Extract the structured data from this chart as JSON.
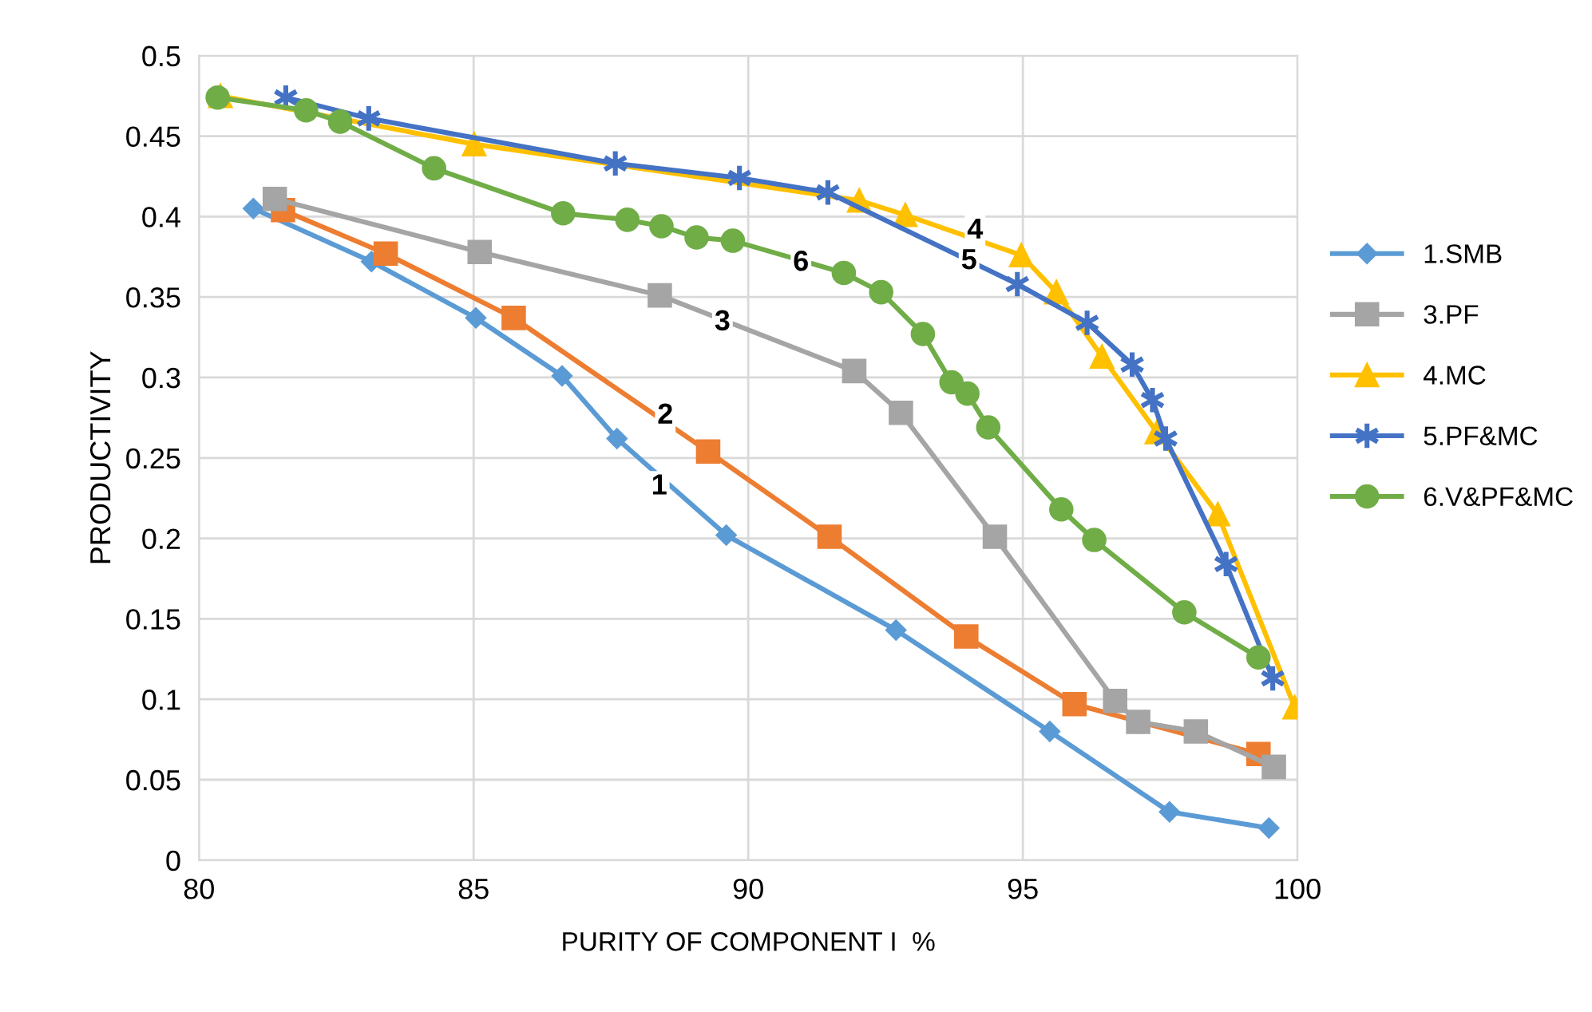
{
  "chart_data": {
    "type": "line",
    "xlabel": "PURITY OF COMPONENT I  %",
    "ylabel": "PRODUCTIVITY",
    "xlim": [
      80,
      100
    ],
    "xticks": [
      80,
      85,
      90,
      95,
      100
    ],
    "ylim": [
      0,
      0.5
    ],
    "yticks": [
      {
        "value": 0,
        "label": "0"
      },
      {
        "value": 0.05,
        "label": "0.05"
      },
      {
        "value": 0.1,
        "label": "0.1"
      },
      {
        "value": 0.15,
        "label": "0.15"
      },
      {
        "value": 0.2,
        "label": "0.2"
      },
      {
        "value": 0.25,
        "label": "0.25"
      },
      {
        "value": 0.3,
        "label": "0.3"
      },
      {
        "value": 0.35,
        "label": "0.35"
      },
      {
        "value": 0.4,
        "label": "0.4"
      },
      {
        "value": 0.45,
        "label": "0.45"
      },
      {
        "value": 0.5,
        "label": "0.5"
      }
    ],
    "grid": true,
    "legend": "right",
    "line_style": "solid",
    "series": [
      {
        "name": "1.SMB",
        "color": "#5b9bd5",
        "marker": "diamond",
        "x": [
          80.99,
          83.14,
          85.04,
          86.61,
          87.61,
          89.6,
          92.69,
          95.49,
          97.67,
          99.48
        ],
        "values": [
          0.405,
          0.372,
          0.337,
          0.301,
          0.262,
          0.202,
          0.143,
          0.08,
          0.03,
          0.02
        ]
      },
      {
        "color": "#ed7d31",
        "marker": "square",
        "x": [
          81.53,
          83.4,
          85.73,
          89.27,
          91.48,
          93.97,
          95.94,
          99.29
        ],
        "values": [
          0.404,
          0.377,
          0.337,
          0.254,
          0.201,
          0.139,
          0.097,
          0.066
        ]
      },
      {
        "name": "3.PF",
        "color": "#a5a5a5",
        "marker": "square",
        "x": [
          81.38,
          85.11,
          88.39,
          91.93,
          92.78,
          94.49,
          96.68,
          97.1,
          98.15,
          99.57
        ],
        "values": [
          0.411,
          0.378,
          0.351,
          0.304,
          0.278,
          0.201,
          0.099,
          0.086,
          0.08,
          0.058
        ]
      },
      {
        "name": "4.MC",
        "color": "#ffc000",
        "marker": "triangle",
        "x": [
          80.39,
          85.01,
          92.02,
          92.86,
          94.97,
          95.61,
          96.44,
          97.44,
          98.55,
          99.95
        ],
        "values": [
          0.475,
          0.445,
          0.41,
          0.401,
          0.376,
          0.353,
          0.313,
          0.266,
          0.215,
          0.095
        ]
      },
      {
        "name": "5.PF&MC",
        "color": "#4472c4",
        "marker": "cross",
        "x": [
          81.58,
          83.09,
          87.58,
          89.84,
          91.45,
          94.9,
          96.17,
          96.99,
          97.36,
          97.6,
          98.7,
          99.55
        ],
        "values": [
          0.474,
          0.461,
          0.433,
          0.424,
          0.415,
          0.358,
          0.334,
          0.308,
          0.286,
          0.262,
          0.184,
          0.113
        ]
      },
      {
        "name": "6.V&PF&MC",
        "color": "#70ad47",
        "marker": "circle",
        "x": [
          80.34,
          81.95,
          82.57,
          84.28,
          86.63,
          87.8,
          88.42,
          89.06,
          89.72,
          91.74,
          92.42,
          93.18,
          93.7,
          93.99,
          94.37,
          95.7,
          96.3,
          97.94,
          99.29
        ],
        "values": [
          0.474,
          0.466,
          0.459,
          0.43,
          0.402,
          0.398,
          0.394,
          0.387,
          0.385,
          0.365,
          0.353,
          0.327,
          0.297,
          0.29,
          0.269,
          0.218,
          0.199,
          0.154,
          0.126
        ]
      }
    ],
    "annotations": [
      {
        "text": "1",
        "x": 88.38,
        "y": 0.232
      },
      {
        "text": "2",
        "x": 88.49,
        "y": 0.276
      },
      {
        "text": "3",
        "x": 89.53,
        "y": 0.334
      },
      {
        "text": "4",
        "x": 94.13,
        "y": 0.391
      },
      {
        "text": "5",
        "x": 94.02,
        "y": 0.372
      },
      {
        "text": "6",
        "x": 90.96,
        "y": 0.371
      }
    ]
  }
}
